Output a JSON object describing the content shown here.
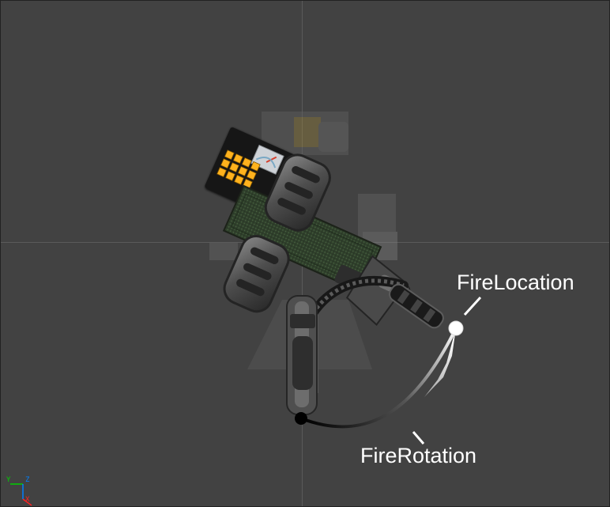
{
  "viewport": {
    "background_color": "#424242",
    "grid_color": "#5a5a5a"
  },
  "annotations": {
    "fire_location_label": "FireLocation",
    "fire_rotation_label": "FireRotation"
  },
  "axis_gizmo": {
    "y_label": "Y",
    "z_label": "Z",
    "x_label": "X",
    "y_color": "#00d000",
    "z_color": "#0080ff",
    "x_color": "#ff2020"
  },
  "icons": {
    "turret_model": "turret-model-icon",
    "fire_location_point": "fire-location-point-icon",
    "fire_rotation_origin": "fire-rotation-origin-icon",
    "fire_rotation_arc": "fire-rotation-arc-icon"
  }
}
